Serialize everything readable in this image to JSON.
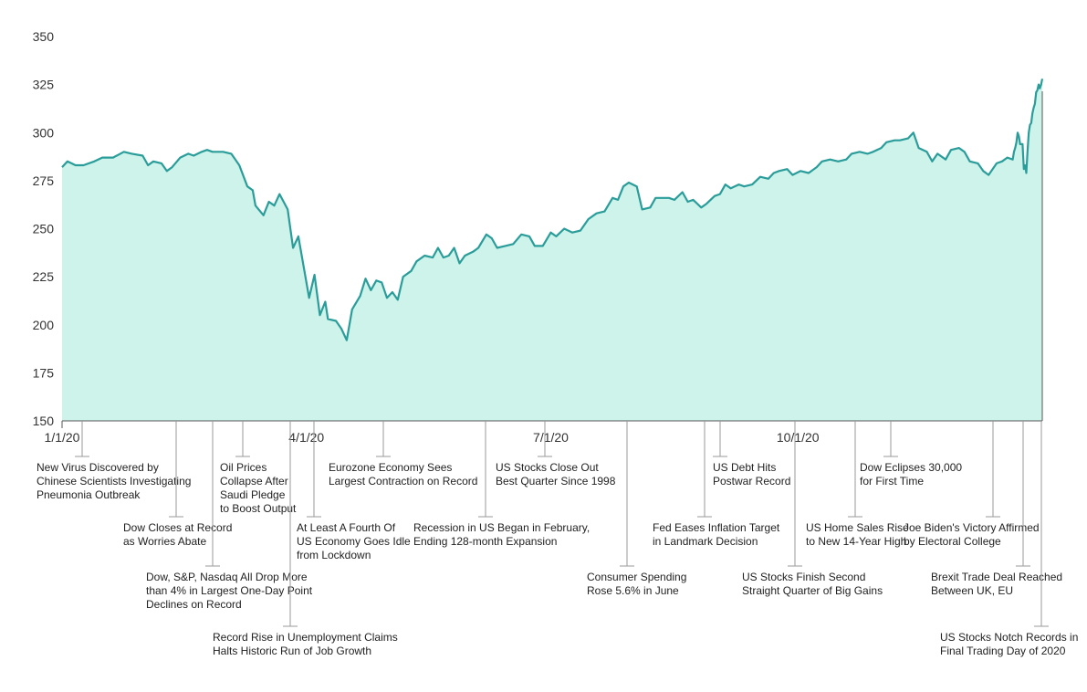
{
  "chart_data": {
    "type": "area",
    "title": "",
    "xlabel": "",
    "ylabel": "",
    "x_range": [
      "2020-01-01",
      "2020-12-31"
    ],
    "ylim": [
      150,
      350
    ],
    "yticks": [
      150,
      175,
      200,
      225,
      250,
      275,
      300,
      325,
      350
    ],
    "xticks": [
      {
        "label": "1/1/20",
        "date": "2020-01-01"
      },
      {
        "label": "4/1/20",
        "date": "2020-04-01"
      },
      {
        "label": "7/1/20",
        "date": "2020-07-01"
      },
      {
        "label": "10/1/20",
        "date": "2020-10-01"
      }
    ],
    "grid": false,
    "colors": {
      "line": "#2a9d9a",
      "fill": "#cdf3ea",
      "axis": "#555555",
      "leader": "#9a9a9a"
    },
    "series": [
      {
        "points": [
          [
            "2020-01-01",
            282
          ],
          [
            "2020-01-03",
            285
          ],
          [
            "2020-01-06",
            283
          ],
          [
            "2020-01-09",
            283
          ],
          [
            "2020-01-13",
            285
          ],
          [
            "2020-01-16",
            287
          ],
          [
            "2020-01-20",
            287
          ],
          [
            "2020-01-24",
            290
          ],
          [
            "2020-01-27",
            289
          ],
          [
            "2020-01-31",
            288
          ],
          [
            "2020-02-02",
            283
          ],
          [
            "2020-02-04",
            285
          ],
          [
            "2020-02-07",
            284
          ],
          [
            "2020-02-09",
            280
          ],
          [
            "2020-02-11",
            282
          ],
          [
            "2020-02-14",
            287
          ],
          [
            "2020-02-17",
            289
          ],
          [
            "2020-02-19",
            288
          ],
          [
            "2020-02-22",
            290
          ],
          [
            "2020-02-24",
            291
          ],
          [
            "2020-02-26",
            290
          ],
          [
            "2020-03-01",
            290
          ],
          [
            "2020-03-04",
            289
          ],
          [
            "2020-03-07",
            283
          ],
          [
            "2020-03-10",
            272
          ],
          [
            "2020-03-12",
            270
          ],
          [
            "2020-03-13",
            262
          ],
          [
            "2020-03-16",
            257
          ],
          [
            "2020-03-18",
            264
          ],
          [
            "2020-03-20",
            262
          ],
          [
            "2020-03-22",
            268
          ],
          [
            "2020-03-25",
            260
          ],
          [
            "2020-03-27",
            240
          ],
          [
            "2020-03-29",
            246
          ],
          [
            "2020-03-31",
            230
          ],
          [
            "2020-04-02",
            214
          ],
          [
            "2020-04-04",
            226
          ],
          [
            "2020-04-06",
            205
          ],
          [
            "2020-04-08",
            212
          ],
          [
            "2020-04-09",
            203
          ],
          [
            "2020-04-12",
            202
          ],
          [
            "2020-04-14",
            198
          ],
          [
            "2020-04-16",
            192
          ],
          [
            "2020-04-18",
            208
          ],
          [
            "2020-04-21",
            215
          ],
          [
            "2020-04-23",
            224
          ],
          [
            "2020-04-25",
            218
          ],
          [
            "2020-04-27",
            223
          ],
          [
            "2020-04-29",
            222
          ],
          [
            "2020-05-01",
            214
          ],
          [
            "2020-05-03",
            217
          ],
          [
            "2020-05-05",
            213
          ],
          [
            "2020-05-07",
            225
          ],
          [
            "2020-05-10",
            228
          ],
          [
            "2020-05-12",
            233
          ],
          [
            "2020-05-15",
            236
          ],
          [
            "2020-05-18",
            235
          ],
          [
            "2020-05-20",
            240
          ],
          [
            "2020-05-22",
            235
          ],
          [
            "2020-05-24",
            236
          ],
          [
            "2020-05-26",
            240
          ],
          [
            "2020-05-28",
            232
          ],
          [
            "2020-05-30",
            236
          ],
          [
            "2020-06-02",
            238
          ],
          [
            "2020-06-04",
            240
          ],
          [
            "2020-06-07",
            247
          ],
          [
            "2020-06-09",
            245
          ],
          [
            "2020-06-11",
            240
          ],
          [
            "2020-06-14",
            241
          ],
          [
            "2020-06-17",
            242
          ],
          [
            "2020-06-20",
            247
          ],
          [
            "2020-06-23",
            246
          ],
          [
            "2020-06-25",
            241
          ],
          [
            "2020-06-28",
            241
          ],
          [
            "2020-07-01",
            248
          ],
          [
            "2020-07-03",
            246
          ],
          [
            "2020-07-06",
            250
          ],
          [
            "2020-07-09",
            248
          ],
          [
            "2020-07-12",
            249
          ],
          [
            "2020-07-15",
            255
          ],
          [
            "2020-07-18",
            258
          ],
          [
            "2020-07-21",
            259
          ],
          [
            "2020-07-24",
            266
          ],
          [
            "2020-07-26",
            265
          ],
          [
            "2020-07-28",
            272
          ],
          [
            "2020-07-30",
            274
          ],
          [
            "2020-08-02",
            272
          ],
          [
            "2020-08-04",
            260
          ],
          [
            "2020-08-07",
            261
          ],
          [
            "2020-08-09",
            266
          ],
          [
            "2020-08-11",
            266
          ],
          [
            "2020-08-14",
            266
          ],
          [
            "2020-08-16",
            265
          ],
          [
            "2020-08-19",
            269
          ],
          [
            "2020-08-21",
            264
          ],
          [
            "2020-08-23",
            265
          ],
          [
            "2020-08-26",
            261
          ],
          [
            "2020-08-28",
            263
          ],
          [
            "2020-08-31",
            267
          ],
          [
            "2020-09-02",
            268
          ],
          [
            "2020-09-04",
            273
          ],
          [
            "2020-09-06",
            271
          ],
          [
            "2020-09-09",
            273
          ],
          [
            "2020-09-11",
            272
          ],
          [
            "2020-09-14",
            273
          ],
          [
            "2020-09-17",
            277
          ],
          [
            "2020-09-20",
            276
          ],
          [
            "2020-09-22",
            279
          ],
          [
            "2020-09-24",
            280
          ],
          [
            "2020-09-27",
            281
          ],
          [
            "2020-09-29",
            278
          ],
          [
            "2020-10-02",
            280
          ],
          [
            "2020-10-05",
            279
          ],
          [
            "2020-10-08",
            282
          ],
          [
            "2020-10-10",
            285
          ],
          [
            "2020-10-13",
            286
          ],
          [
            "2020-10-16",
            285
          ],
          [
            "2020-10-19",
            286
          ],
          [
            "2020-10-21",
            289
          ],
          [
            "2020-10-24",
            290
          ],
          [
            "2020-10-27",
            289
          ],
          [
            "2020-10-29",
            290
          ],
          [
            "2020-11-01",
            292
          ],
          [
            "2020-11-03",
            295
          ],
          [
            "2020-11-06",
            296
          ],
          [
            "2020-11-08",
            296
          ],
          [
            "2020-11-11",
            297
          ],
          [
            "2020-11-13",
            300
          ],
          [
            "2020-11-15",
            292
          ],
          [
            "2020-11-18",
            290
          ],
          [
            "2020-11-20",
            285
          ],
          [
            "2020-11-22",
            289
          ],
          [
            "2020-11-25",
            286
          ],
          [
            "2020-11-27",
            291
          ],
          [
            "2020-11-30",
            292
          ],
          [
            "2020-12-02",
            290
          ],
          [
            "2020-12-04",
            285
          ],
          [
            "2020-12-07",
            284
          ],
          [
            "2020-12-09",
            280
          ],
          [
            "2020-12-11",
            278
          ],
          [
            "2020-12-14",
            284
          ],
          [
            "2020-12-16",
            285
          ],
          [
            "2020-12-18",
            287
          ],
          [
            "2020-12-20",
            286
          ]
        ],
        "continuation": [
          [
            "2020-12-21",
            290
          ],
          [
            "2020-12-22",
            292
          ],
          [
            "2020-12-23",
            295
          ],
          [
            "2020-12-24",
            300
          ],
          [
            "2020-12-25",
            298
          ],
          [
            "2020-12-26",
            294
          ],
          [
            "2020-12-27",
            294
          ],
          [
            "2020-12-28",
            294
          ],
          [
            "2020-12-29",
            281
          ],
          [
            "2020-12-29",
            283
          ],
          [
            "2020-12-30",
            279
          ],
          [
            "2020-12-30",
            290
          ],
          [
            "2020-12-30",
            300
          ],
          [
            "2020-12-30",
            304
          ],
          [
            "2020-12-30",
            305
          ],
          [
            "2020-12-30",
            310
          ],
          [
            "2020-12-31",
            313
          ],
          [
            "2020-12-31",
            315
          ],
          [
            "2020-12-31",
            321
          ],
          [
            "2020-12-31",
            322
          ],
          [
            "2020-12-31",
            325
          ],
          [
            "2020-12-31",
            323
          ],
          [
            "2020-12-31",
            325
          ],
          [
            "2020-12-31",
            328
          ]
        ]
      }
    ],
    "annotations": [
      {
        "lines": [
          "New Virus Discovered by",
          "Chinese Scientists Investigating",
          "Pneumonia Outbreak"
        ]
      },
      {
        "lines": [
          "Dow Closes at Record",
          "as Worries Abate"
        ]
      },
      {
        "lines": [
          "Dow, S&P, Nasdaq All Drop More",
          "than 4% in Largest One-Day Point",
          "Declines on Record"
        ]
      },
      {
        "lines": [
          "Oil Prices",
          "Collapse After",
          "Saudi Pledge",
          "to Boost Output"
        ]
      },
      {
        "lines": [
          "Record Rise in Unemployment Claims",
          "Halts Historic Run of Job Growth"
        ]
      },
      {
        "lines": [
          "At Least A Fourth Of",
          "US Economy Goes Idle",
          "from Lockdown"
        ]
      },
      {
        "lines": [
          "Eurozone Economy Sees",
          "Largest Contraction on Record"
        ]
      },
      {
        "lines": [
          "Recession in US Began in February,",
          "Ending 128-month Expansion"
        ]
      },
      {
        "lines": [
          "US Stocks Close Out",
          "Best Quarter Since 1998"
        ]
      },
      {
        "lines": [
          "Consumer Spending",
          "Rose 5.6% in June"
        ]
      },
      {
        "lines": [
          "Fed Eases Inflation Target",
          "in Landmark Decision"
        ]
      },
      {
        "lines": [
          "US Debt Hits",
          "Postwar Record"
        ]
      },
      {
        "lines": [
          "US Stocks Finish Second",
          "Straight Quarter of Big Gains"
        ]
      },
      {
        "lines": [
          "US Home Sales Rise",
          "to New 14-Year High"
        ]
      },
      {
        "lines": [
          "Dow Eclipses 30,000",
          "for First Time"
        ]
      },
      {
        "lines": [
          "Joe Biden's Victory Affirmed",
          "by Electoral College"
        ]
      },
      {
        "lines": [
          "Brexit Trade Deal Reached",
          "Between UK, EU"
        ]
      },
      {
        "lines": [
          "US Stocks Notch Records in",
          "Final Trading Day of 2020"
        ]
      }
    ]
  }
}
